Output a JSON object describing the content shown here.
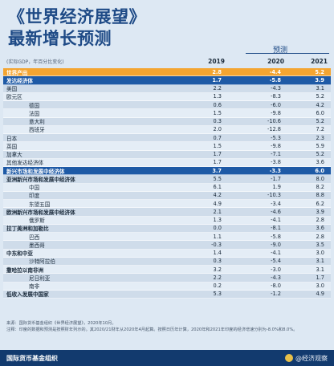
{
  "title": {
    "line1": "《世界经济展望》",
    "line2": "最新增长预测"
  },
  "projection_label": "预测",
  "unit_note": "(实际GDP，年百分比变化)",
  "columns": [
    "2019",
    "2020",
    "2021"
  ],
  "rows": [
    {
      "label": "世界产出",
      "v": [
        "2.8",
        "-4.4",
        "5.2"
      ],
      "style": "world"
    },
    {
      "label": "发达经济体",
      "v": [
        "1.7",
        "-5.8",
        "3.9"
      ],
      "style": "section"
    },
    {
      "label": "美国",
      "v": [
        "2.2",
        "-4.3",
        "3.1"
      ],
      "style": "stripe"
    },
    {
      "label": "欧元区",
      "v": [
        "1.3",
        "-8.3",
        "5.2"
      ],
      "style": "plain"
    },
    {
      "label": "德国",
      "v": [
        "0.6",
        "-6.0",
        "4.2"
      ],
      "style": "stripe",
      "indent": true
    },
    {
      "label": "法国",
      "v": [
        "1.5",
        "-9.8",
        "6.0"
      ],
      "style": "plain",
      "indent": true
    },
    {
      "label": "意大利",
      "v": [
        "0.3",
        "-10.6",
        "5.2"
      ],
      "style": "stripe",
      "indent": true
    },
    {
      "label": "西班牙",
      "v": [
        "2.0",
        "-12.8",
        "7.2"
      ],
      "style": "plain",
      "indent": true
    },
    {
      "label": "日本",
      "v": [
        "0.7",
        "-5.3",
        "2.3"
      ],
      "style": "stripe"
    },
    {
      "label": "英国",
      "v": [
        "1.5",
        "-9.8",
        "5.9"
      ],
      "style": "plain"
    },
    {
      "label": "加拿大",
      "v": [
        "1.7",
        "-7.1",
        "5.2"
      ],
      "style": "stripe"
    },
    {
      "label": "其他发达经济体",
      "v": [
        "1.7",
        "-3.8",
        "3.6"
      ],
      "style": "plain"
    },
    {
      "label": "新兴市场和发展中经济体",
      "v": [
        "3.7",
        "-3.3",
        "6.0"
      ],
      "style": "section"
    },
    {
      "label": "亚洲新兴市场和发展中经济体",
      "v": [
        "5.5",
        "-1.7",
        "8.0"
      ],
      "style": "stripe",
      "bold": true
    },
    {
      "label": "中国",
      "v": [
        "6.1",
        "1.9",
        "8.2"
      ],
      "style": "plain",
      "indent": true
    },
    {
      "label": "印度",
      "v": [
        "4.2",
        "-10.3",
        "8.8"
      ],
      "style": "stripe",
      "indent": true
    },
    {
      "label": "东盟五国",
      "v": [
        "4.9",
        "-3.4",
        "6.2"
      ],
      "style": "plain",
      "indent": true
    },
    {
      "label": "欧洲新兴市场和发展中经济体",
      "v": [
        "2.1",
        "-4.6",
        "3.9"
      ],
      "style": "stripe",
      "bold": true
    },
    {
      "label": "俄罗斯",
      "v": [
        "1.3",
        "-4.1",
        "2.8"
      ],
      "style": "plain",
      "indent": true
    },
    {
      "label": "拉丁美洲和加勒比",
      "v": [
        "0.0",
        "-8.1",
        "3.6"
      ],
      "style": "stripe",
      "bold": true
    },
    {
      "label": "巴西",
      "v": [
        "1.1",
        "-5.8",
        "2.8"
      ],
      "style": "plain",
      "indent": true
    },
    {
      "label": "墨西哥",
      "v": [
        "-0.3",
        "-9.0",
        "3.5"
      ],
      "style": "stripe",
      "indent": true
    },
    {
      "label": "中东和中亚",
      "v": [
        "1.4",
        "-4.1",
        "3.0"
      ],
      "style": "plain",
      "bold": true
    },
    {
      "label": "沙特阿拉伯",
      "v": [
        "0.3",
        "-5.4",
        "3.1"
      ],
      "style": "stripe",
      "indent": true
    },
    {
      "label": "撒哈拉以南非洲",
      "v": [
        "3.2",
        "-3.0",
        "3.1"
      ],
      "style": "plain",
      "bold": true
    },
    {
      "label": "尼日利亚",
      "v": [
        "2.2",
        "-4.3",
        "1.7"
      ],
      "style": "stripe",
      "indent": true
    },
    {
      "label": "南非",
      "v": [
        "0.2",
        "-8.0",
        "3.0"
      ],
      "style": "plain",
      "indent": true
    },
    {
      "label": "低收入发展中国家",
      "v": [
        "5.3",
        "-1.2",
        "4.9"
      ],
      "style": "stripe",
      "bold": true
    }
  ],
  "notes": {
    "source": "来源：国际货币基金组织《世界经济展望》，2020年10月。",
    "note": "注释：印度的数据和预测是按照财年列示的。其2020/21财年从2020年4月起算。按照日历年计算，2020年和2021年印度的经济增速分别为-8.0%和8.0%。"
  },
  "footer": {
    "org": "国际货币基金组织",
    "watermark": "@经济观察"
  },
  "colors": {
    "accent": "#1e5aa6",
    "world_row": "#f4a531",
    "footer_bar": "#123a6e",
    "title": "#1e4a86"
  }
}
